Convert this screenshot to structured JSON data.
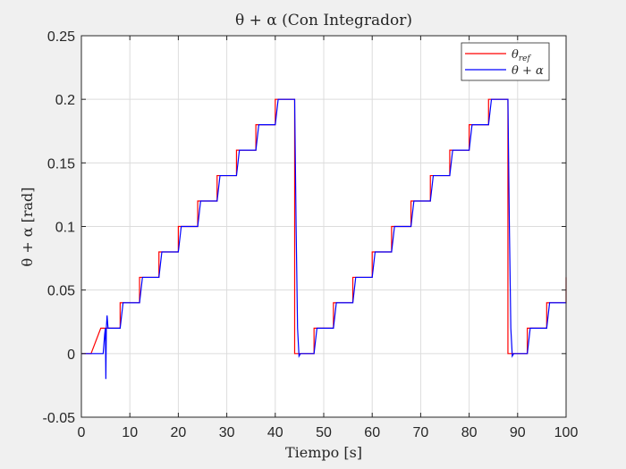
{
  "chart_data": {
    "type": "line",
    "title": "θ + α (Con Integrador)",
    "xlabel": "Tiempo [s]",
    "ylabel": "θ + α [rad]",
    "xlim": [
      0,
      100
    ],
    "ylim": [
      -0.05,
      0.25
    ],
    "xticks": [
      0,
      10,
      20,
      30,
      40,
      50,
      60,
      70,
      80,
      90,
      100
    ],
    "yticks": [
      -0.05,
      0,
      0.05,
      0.1,
      0.15,
      0.2,
      0.25
    ],
    "xtick_labels": [
      "0",
      "10",
      "20",
      "30",
      "40",
      "50",
      "60",
      "70",
      "80",
      "90",
      "100"
    ],
    "ytick_labels": [
      "-0.05",
      "0",
      "0.05",
      "0.1",
      "0.15",
      "0.2",
      "0.25"
    ],
    "grid": true,
    "legend_position": "top-right",
    "series": [
      {
        "name": "θref",
        "color": "#ff0000",
        "x": [
          0,
          2,
          4,
          5.5,
          8,
          8,
          12,
          12,
          16,
          16,
          20,
          20,
          24,
          24,
          28,
          28,
          32,
          32,
          36,
          36,
          40,
          40,
          44,
          44,
          48,
          48,
          52,
          52,
          56,
          56,
          60,
          60,
          64,
          64,
          68,
          68,
          72,
          72,
          76,
          76,
          80,
          80,
          84,
          84,
          88,
          88,
          92,
          92,
          96,
          96,
          100,
          100
        ],
        "y": [
          0,
          0,
          0.02,
          0.02,
          0.02,
          0.04,
          0.04,
          0.06,
          0.06,
          0.08,
          0.08,
          0.1,
          0.1,
          0.12,
          0.12,
          0.14,
          0.14,
          0.16,
          0.16,
          0.18,
          0.18,
          0.2,
          0.2,
          0,
          0,
          0.02,
          0.02,
          0.04,
          0.04,
          0.06,
          0.06,
          0.08,
          0.08,
          0.1,
          0.1,
          0.12,
          0.12,
          0.14,
          0.14,
          0.16,
          0.16,
          0.18,
          0.18,
          0.2,
          0.2,
          0,
          0,
          0.02,
          0.02,
          0.04,
          0.04,
          0.06
        ]
      },
      {
        "name": "θ + α",
        "color": "#0000ff",
        "x": [
          0,
          4.5,
          4.8,
          4.95,
          5.05,
          5.15,
          5.3,
          5.5,
          5.7,
          6,
          8,
          8.3,
          8.6,
          12,
          12.3,
          12.6,
          16,
          16.3,
          16.6,
          20,
          20.3,
          20.6,
          24,
          24.3,
          24.6,
          28,
          28.3,
          28.6,
          32,
          32.3,
          32.6,
          36,
          36.3,
          36.6,
          40,
          40.3,
          40.6,
          44,
          44.3,
          44.6,
          44.9,
          45.2,
          48,
          48.3,
          48.6,
          52,
          52.3,
          52.6,
          56,
          56.3,
          56.6,
          60,
          60.3,
          60.6,
          64,
          64.3,
          64.6,
          68,
          68.3,
          68.6,
          72,
          72.3,
          72.6,
          76,
          76.3,
          76.6,
          80,
          80.3,
          80.6,
          84,
          84.3,
          84.6,
          88,
          88.3,
          88.6,
          88.9,
          89.2,
          92,
          92.3,
          92.6,
          96,
          96.3,
          96.6,
          100
        ],
        "y": [
          0,
          0,
          0.015,
          0.02,
          -0.02,
          0.02,
          0.03,
          0.02,
          0.02,
          0.02,
          0.02,
          0.03,
          0.04,
          0.04,
          0.05,
          0.06,
          0.06,
          0.07,
          0.08,
          0.08,
          0.09,
          0.1,
          0.1,
          0.11,
          0.12,
          0.12,
          0.13,
          0.14,
          0.14,
          0.15,
          0.16,
          0.16,
          0.17,
          0.18,
          0.18,
          0.19,
          0.2,
          0.2,
          0.1,
          0.02,
          -0.002,
          0,
          0,
          0.01,
          0.02,
          0.02,
          0.03,
          0.04,
          0.04,
          0.05,
          0.06,
          0.06,
          0.07,
          0.08,
          0.08,
          0.09,
          0.1,
          0.1,
          0.11,
          0.12,
          0.12,
          0.13,
          0.14,
          0.14,
          0.15,
          0.16,
          0.16,
          0.17,
          0.18,
          0.18,
          0.19,
          0.2,
          0.2,
          0.1,
          0.02,
          -0.002,
          0,
          0,
          0.01,
          0.02,
          0.02,
          0.03,
          0.04,
          0.04
        ]
      }
    ]
  }
}
